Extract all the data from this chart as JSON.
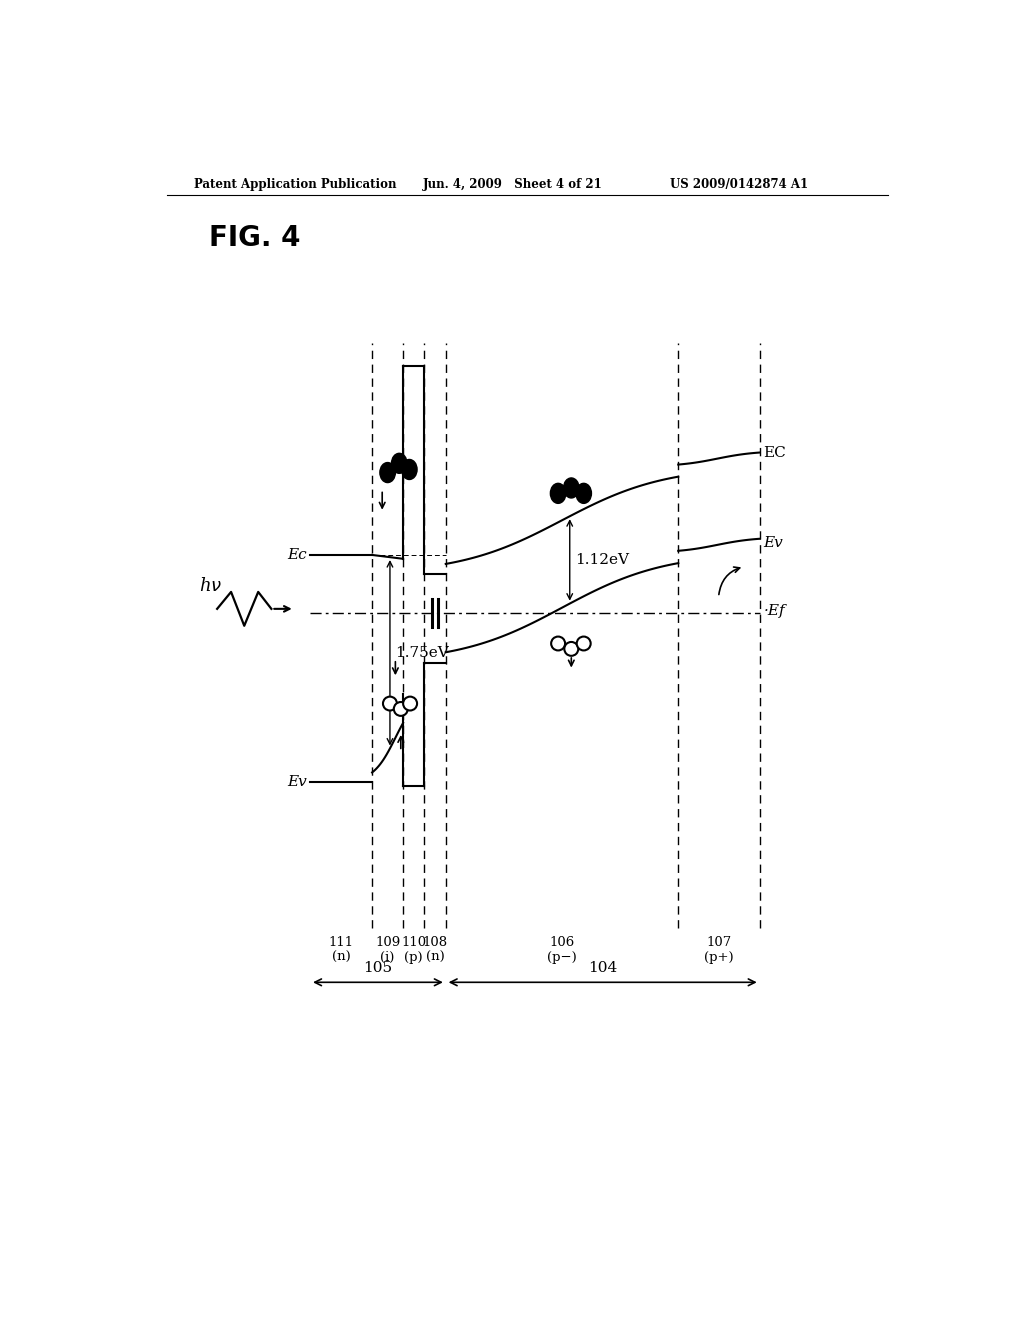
{
  "header_left": "Patent Application Publication",
  "header_mid": "Jun. 4, 2009   Sheet 4 of 21",
  "header_right": "US 2009/0142874 A1",
  "fig_label": "FIG. 4",
  "bg_color": "#ffffff",
  "text_color": "#000000",
  "annotation_1_75": "1.75eV",
  "annotation_1_12": "1.12eV",
  "hv_label": "hν"
}
